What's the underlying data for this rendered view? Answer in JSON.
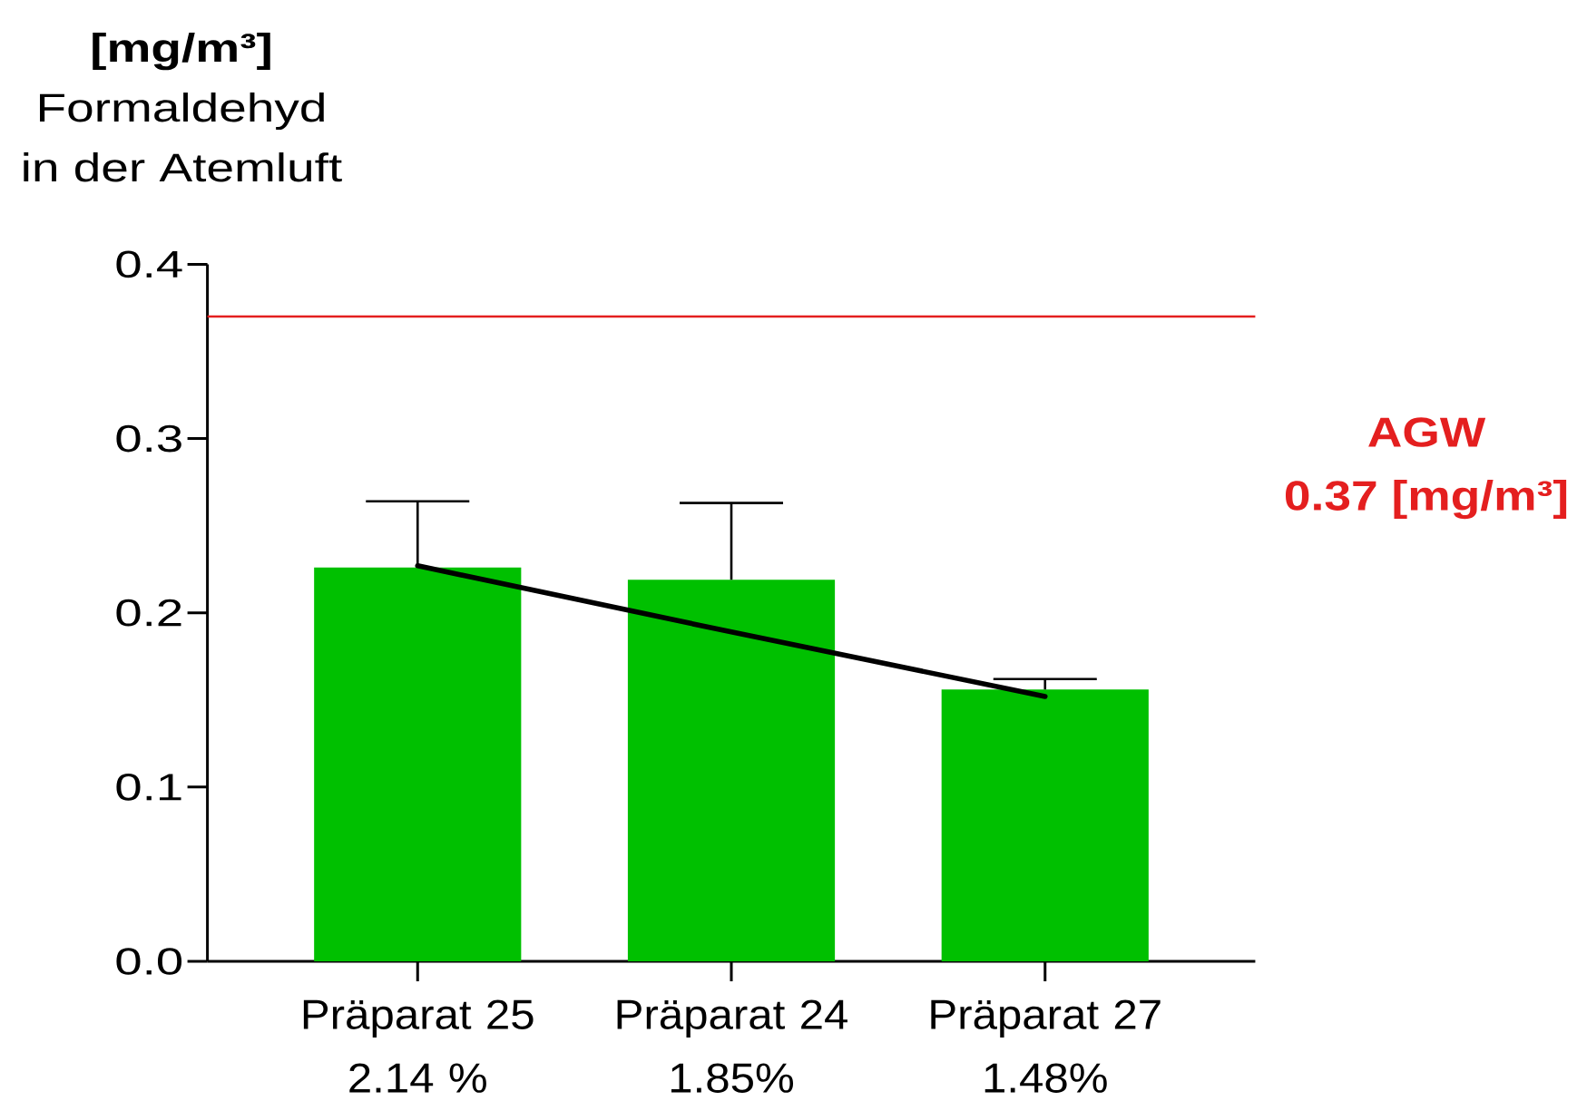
{
  "chart_data": {
    "type": "bar",
    "ylabel": "**[mg/m³]** Formaldehyd in der Atemluft",
    "categories": [
      "Präparat 25 2.14 %",
      "Präparat 24 1.85%",
      "Präparat 27 1.48%"
    ],
    "series": [
      {
        "color": "#00c000",
        "values": [
          0.226,
          0.219,
          0.156
        ],
        "errors": [
          [
            0.226,
            0.264
          ],
          [
            0.219,
            0.263
          ],
          [
            0.156,
            0.162
          ]
        ]
      },
      {
        "type": "line",
        "color": "#000000",
        "values": [
          0.227,
          0.189,
          0.152
        ]
      }
    ],
    "ylim": [
      0,
      0.4
    ],
    "yticks": [
      {
        "value": 0,
        "label": "0.0"
      },
      0.1,
      0.2,
      0.3,
      0.4
    ],
    "ref_lines": [
      {
        "axis": "y",
        "value": 0.37,
        "label": "AGW 0.37 [mg/m³]",
        "color": "#e41f1f"
      }
    ]
  }
}
